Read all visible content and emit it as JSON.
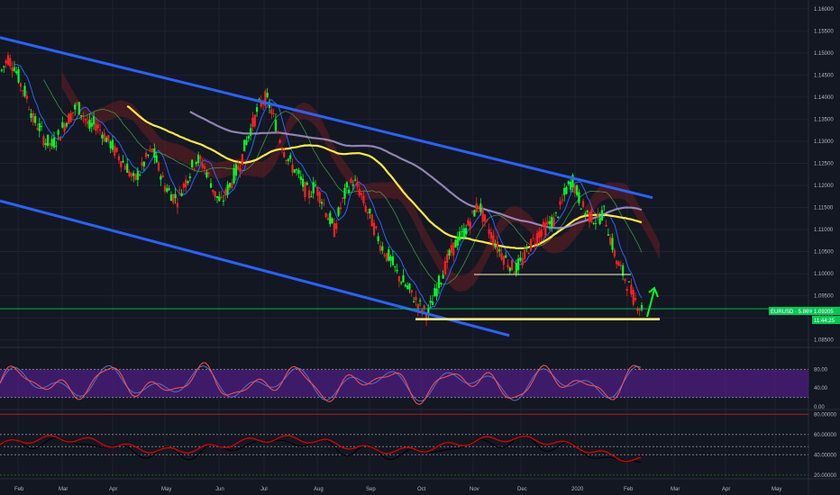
{
  "chart_data": {
    "type": "candlestick",
    "instrument_label": "EURUSD · 5.86%",
    "last_price": "1.09205",
    "countdown": "11:44:25",
    "price_axis": {
      "ticks": [
        "1.16000",
        "1.15500",
        "1.15000",
        "1.14500",
        "1.14000",
        "1.13500",
        "1.13000",
        "1.12500",
        "1.12000",
        "1.11500",
        "1.11000",
        "1.10500",
        "1.10000",
        "1.09500",
        "1.09000",
        "1.08500"
      ]
    },
    "time_axis": {
      "labels": [
        "Feb",
        "Mar",
        "Apr",
        "May",
        "Jun",
        "Jul",
        "Aug",
        "Sep",
        "Oct",
        "Nov",
        "Dec",
        "2020",
        "Feb",
        "Mar",
        "Apr",
        "May"
      ]
    },
    "oscillator_1": {
      "ticks": [
        "80.00",
        "40.00",
        "0.00"
      ],
      "upper_band": 80,
      "lower_band": 20
    },
    "oscillator_2": {
      "ticks": [
        "80.00000",
        "60.00000",
        "40.00000",
        "20.00000"
      ]
    },
    "colors": {
      "background": "#131722",
      "bull_candle": "#00ff2a",
      "bear_candle": "#ff2020",
      "channel_lines": "#2962ff",
      "ma_yellow": "#ffeb3b",
      "ma_purple": "#b39ddb",
      "support_line": "#fff176",
      "ichimoku_cloud": "#7b1f24",
      "green_arrow": "#00ff2a",
      "osc_fill": "#4a1d7a",
      "osc_line_red": "#ff5252",
      "osc_line_blue": "#5c6bc0"
    },
    "series_price_path": [
      1.146,
      1.149,
      1.147,
      1.143,
      1.14,
      1.135,
      1.133,
      1.13,
      1.129,
      1.131,
      1.134,
      1.136,
      1.138,
      1.136,
      1.133,
      1.134,
      1.132,
      1.13,
      1.128,
      1.126,
      1.124,
      1.121,
      1.123,
      1.126,
      1.128,
      1.124,
      1.12,
      1.118,
      1.117,
      1.12,
      1.123,
      1.126,
      1.125,
      1.122,
      1.118,
      1.116,
      1.119,
      1.122,
      1.125,
      1.13,
      1.134,
      1.138,
      1.14,
      1.137,
      1.132,
      1.128,
      1.125,
      1.123,
      1.12,
      1.118,
      1.12,
      1.117,
      1.113,
      1.11,
      1.115,
      1.119,
      1.121,
      1.119,
      1.115,
      1.112,
      1.108,
      1.105,
      1.103,
      1.1,
      1.098,
      1.096,
      1.094,
      1.092,
      1.091,
      1.095,
      1.099,
      1.103,
      1.106,
      1.108,
      1.11,
      1.113,
      1.116,
      1.112,
      1.109,
      1.106,
      1.104,
      1.102,
      1.101,
      1.103,
      1.106,
      1.108,
      1.11,
      1.111,
      1.112,
      1.115,
      1.119,
      1.121,
      1.117,
      1.114,
      1.113,
      1.112,
      1.114,
      1.108,
      1.103,
      1.1,
      1.097,
      1.094,
      1.092
    ]
  }
}
